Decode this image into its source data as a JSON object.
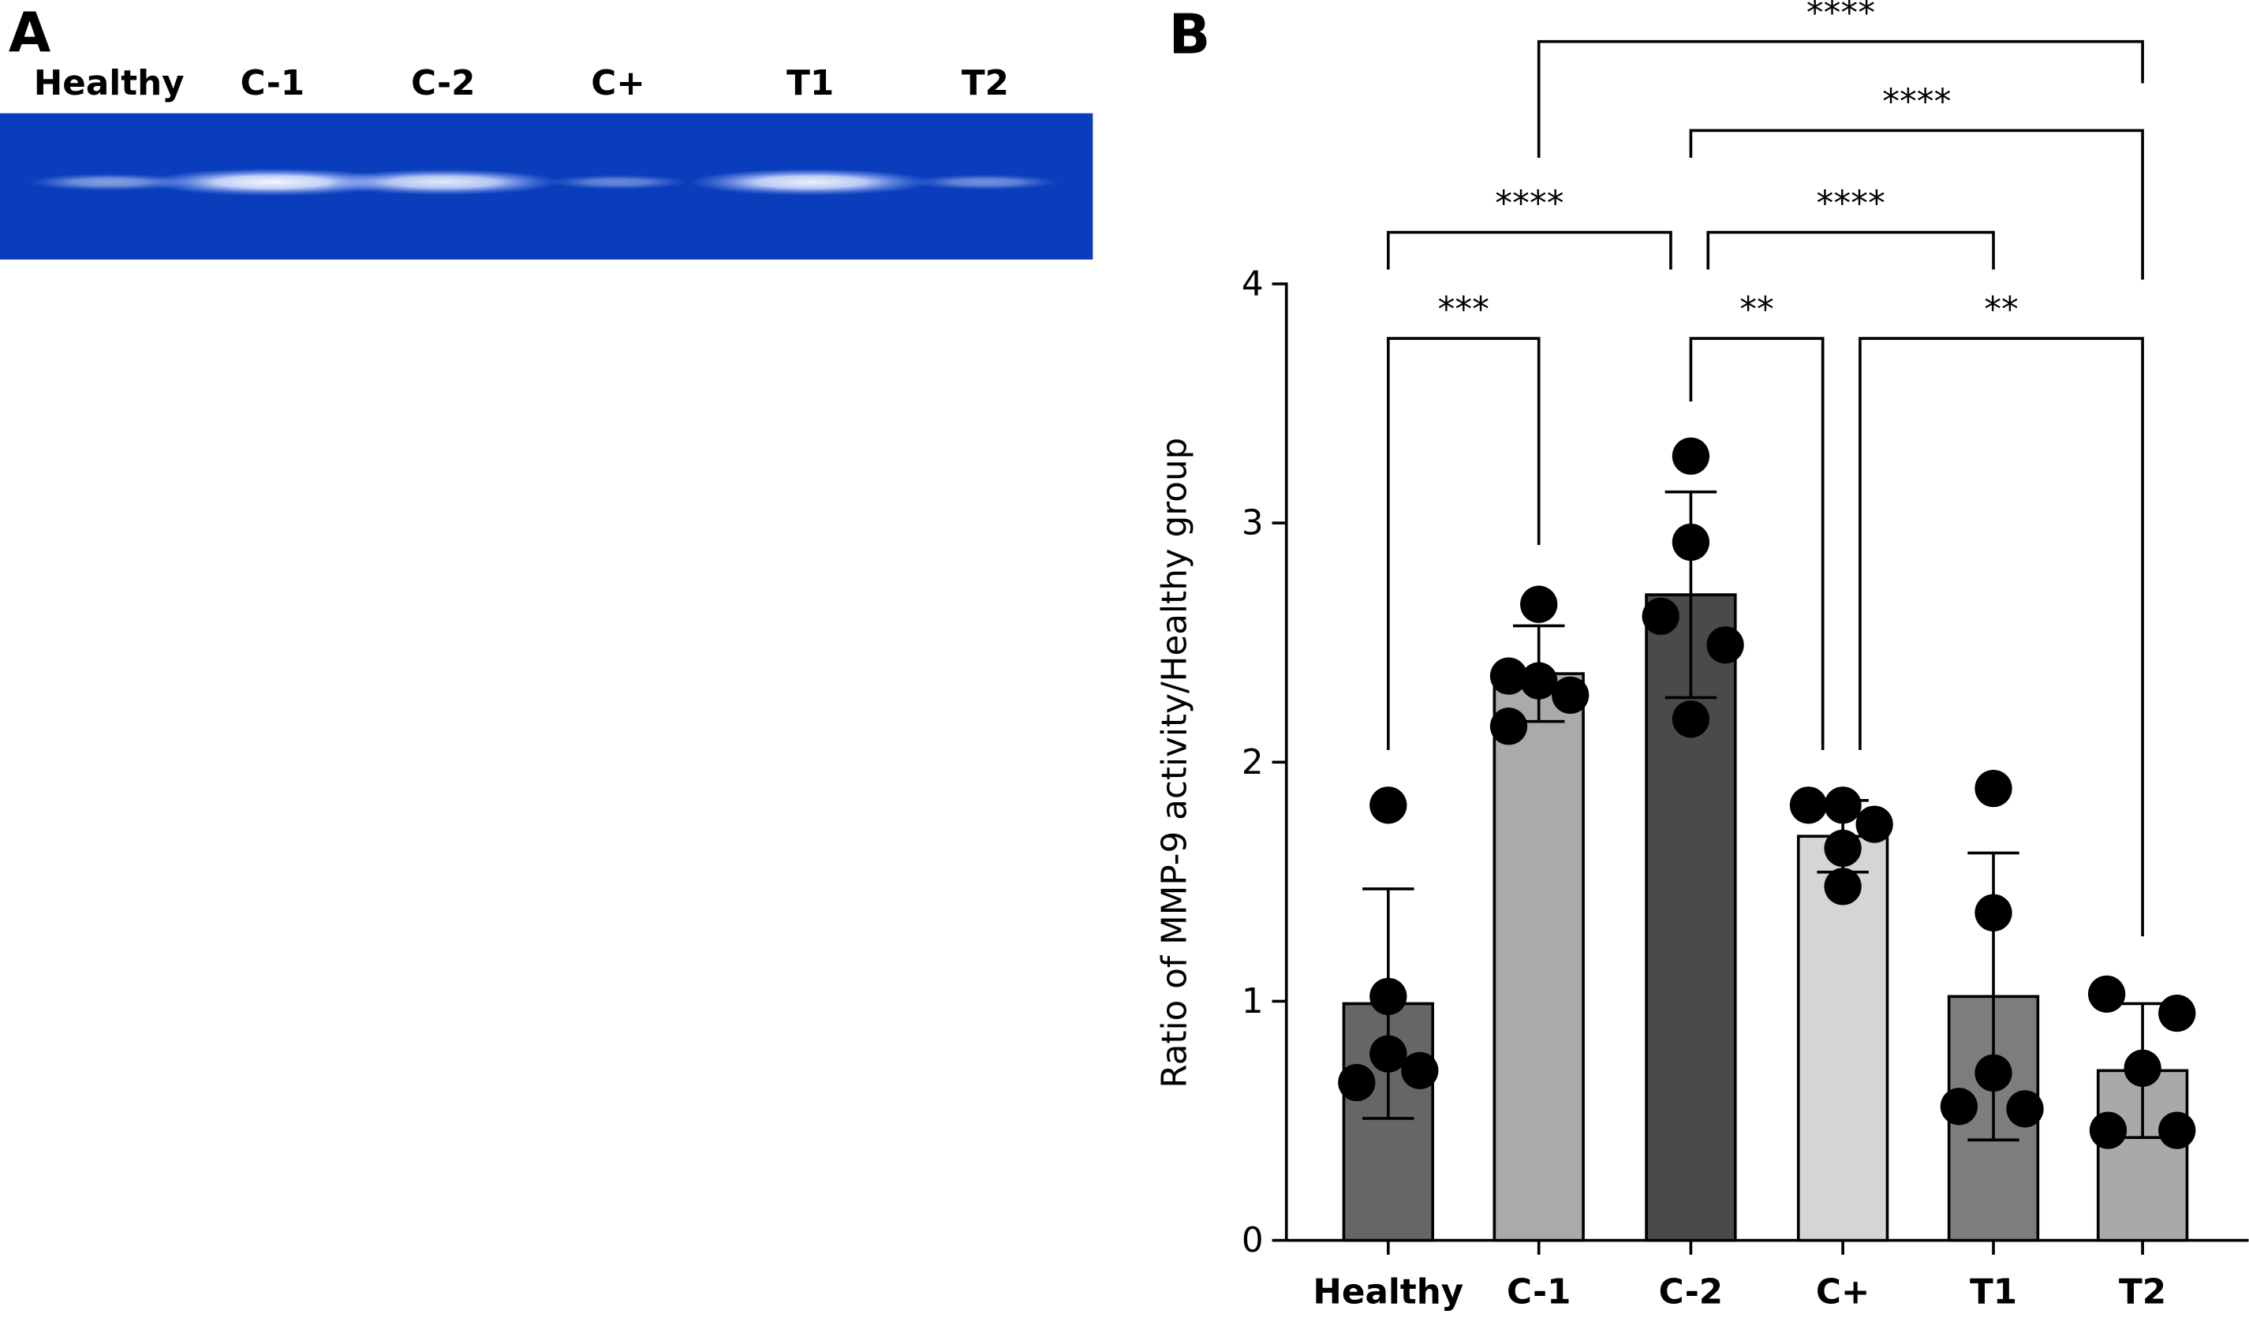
{
  "panel_a": {
    "label": "A",
    "lanes": [
      "Healthy",
      "C-1",
      "C-2",
      "C+",
      "T1",
      "T2"
    ],
    "gel_color": "#0a3dbb",
    "band_intensity": [
      0.35,
      0.95,
      0.85,
      0.2,
      0.9,
      0.25
    ]
  },
  "chart_data": {
    "type": "bar",
    "panel_label": "B",
    "title": "",
    "xlabel": "",
    "ylabel": "Ratio of MMP-9 activity/Healthy group",
    "ylim": [
      0,
      4
    ],
    "yticks": [
      "0",
      "1",
      "2",
      "3",
      "4"
    ],
    "categories": [
      "Healthy",
      "C-1",
      "C-2",
      "C+",
      "T1",
      "T2"
    ],
    "values": [
      0.99,
      2.37,
      2.7,
      1.69,
      1.02,
      0.71
    ],
    "error": [
      0.48,
      0.2,
      0.43,
      0.15,
      0.6,
      0.28
    ],
    "points": [
      [
        1.82,
        1.02,
        0.78,
        0.71,
        0.66
      ],
      [
        2.66,
        2.36,
        2.34,
        2.28,
        2.15
      ],
      [
        3.28,
        2.92,
        2.61,
        2.49,
        2.18
      ],
      [
        1.82,
        1.82,
        1.74,
        1.64,
        1.48
      ],
      [
        1.89,
        1.37,
        0.7,
        0.56,
        0.55
      ],
      [
        1.03,
        0.95,
        0.72,
        0.46,
        0.46
      ]
    ],
    "bar_colors": [
      "#666666",
      "#aaaaaa",
      "#4a4a4a",
      "#d5d5d5",
      "#7d7d7d",
      "#a9a9a9"
    ],
    "significance": [
      {
        "from": 0,
        "to": 1,
        "label": "***"
      },
      {
        "from": 2,
        "to": 3,
        "label": "**"
      },
      {
        "from": 3,
        "to": 5,
        "label": "**"
      },
      {
        "from": 0,
        "to": 2,
        "label": "****"
      },
      {
        "from": 2,
        "to": 4,
        "label": "****"
      },
      {
        "from": 2,
        "to": 5,
        "label": "****"
      },
      {
        "from": 1,
        "to": 5,
        "label": "****"
      }
    ]
  }
}
